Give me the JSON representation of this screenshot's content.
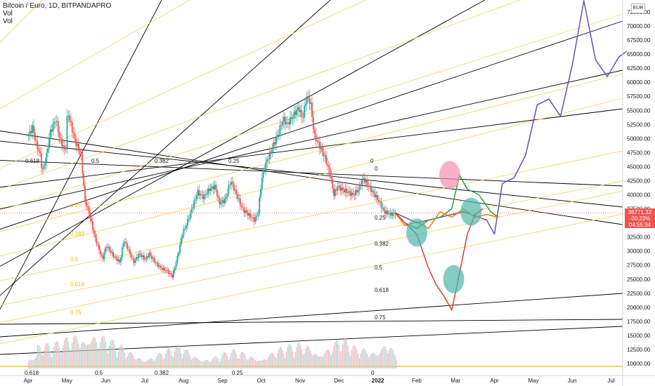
{
  "header": {
    "title": "Bitcoin / Euro, 1D, BITPANDAPRO",
    "vol1": "Vol",
    "vol2": "Vol"
  },
  "currency": "EUR",
  "price_badge": {
    "price": "36771.32",
    "change": "-20.23%",
    "countdown": "04:55:34"
  },
  "colors": {
    "up": "#26a69a",
    "down": "#ef5350",
    "fan_black": "#000000",
    "fan_yellow": "#f5d76e",
    "projection_purple": "#6a4fb3",
    "projection_green": "#2e9e44",
    "projection_orange": "#f57c00",
    "projection_red": "#e53935",
    "circle_teal": "#4db6ac",
    "circle_pink": "#f48fb1"
  },
  "chart_data": {
    "type": "candlestick",
    "symbol": "BTC/EUR",
    "interval": "1D",
    "ylim": [
      9000,
      77000
    ],
    "y_ticks": [
      "10000.00",
      "12500.00",
      "15000.00",
      "17500.00",
      "20000.00",
      "22500.00",
      "25000.00",
      "27500.00",
      "30000.00",
      "32500.00",
      "35000.00",
      "37500.00",
      "40000.00",
      "42500.00",
      "45000.00",
      "47500.00",
      "50000.00",
      "52500.00",
      "55000.00",
      "57500.00",
      "60000.00",
      "62500.00",
      "65000.00",
      "67500.00",
      "70000.00",
      "72500.00"
    ],
    "x_ticks": [
      "Apr",
      "May",
      "Jun",
      "Jul",
      "Aug",
      "Sep",
      "Oct",
      "Nov",
      "Dec",
      "2022",
      "Feb",
      "Mar",
      "Apr",
      "May",
      "Jun",
      "Jul"
    ],
    "x_tick_months": [
      0,
      1,
      2,
      3,
      4,
      5,
      6,
      7,
      8,
      9,
      10,
      11,
      12,
      13,
      14,
      15
    ],
    "price_series": [
      [
        0.0,
        50500
      ],
      [
        0.1,
        52000
      ],
      [
        0.2,
        49000
      ],
      [
        0.3,
        47000
      ],
      [
        0.35,
        44000
      ],
      [
        0.45,
        46500
      ],
      [
        0.55,
        51000
      ],
      [
        0.7,
        53500
      ],
      [
        0.8,
        50000
      ],
      [
        0.95,
        47500
      ],
      [
        1.0,
        55000
      ],
      [
        1.05,
        53500
      ],
      [
        1.2,
        49500
      ],
      [
        1.35,
        47000
      ],
      [
        1.45,
        39000
      ],
      [
        1.55,
        37000
      ],
      [
        1.7,
        32500
      ],
      [
        1.8,
        30500
      ],
      [
        1.9,
        28500
      ],
      [
        2.0,
        31000
      ],
      [
        2.1,
        30000
      ],
      [
        2.2,
        29000
      ],
      [
        2.35,
        28000
      ],
      [
        2.45,
        32000
      ],
      [
        2.55,
        30500
      ],
      [
        2.7,
        28000
      ],
      [
        2.85,
        29500
      ],
      [
        3.0,
        28500
      ],
      [
        3.1,
        29500
      ],
      [
        3.25,
        28000
      ],
      [
        3.4,
        27000
      ],
      [
        3.55,
        26500
      ],
      [
        3.7,
        25500
      ],
      [
        3.85,
        29500
      ],
      [
        3.95,
        33000
      ],
      [
        4.05,
        34500
      ],
      [
        4.2,
        37500
      ],
      [
        4.35,
        40500
      ],
      [
        4.5,
        39500
      ],
      [
        4.65,
        41000
      ],
      [
        4.8,
        41500
      ],
      [
        4.9,
        38500
      ],
      [
        5.05,
        39000
      ],
      [
        5.2,
        42500
      ],
      [
        5.35,
        40000
      ],
      [
        5.5,
        37500
      ],
      [
        5.65,
        36500
      ],
      [
        5.8,
        35500
      ],
      [
        5.9,
        36500
      ],
      [
        6.0,
        43000
      ],
      [
        6.1,
        45500
      ],
      [
        6.25,
        48000
      ],
      [
        6.4,
        50500
      ],
      [
        6.55,
        53500
      ],
      [
        6.65,
        52500
      ],
      [
        6.8,
        54000
      ],
      [
        6.95,
        55500
      ],
      [
        7.05,
        53500
      ],
      [
        7.15,
        57500
      ],
      [
        7.25,
        56500
      ],
      [
        7.35,
        50500
      ],
      [
        7.5,
        48500
      ],
      [
        7.6,
        47000
      ],
      [
        7.75,
        44000
      ],
      [
        7.85,
        40000
      ],
      [
        7.95,
        41500
      ],
      [
        8.05,
        41000
      ],
      [
        8.2,
        40500
      ],
      [
        8.35,
        40000
      ],
      [
        8.5,
        41000
      ],
      [
        8.6,
        43000
      ],
      [
        8.75,
        41500
      ],
      [
        8.85,
        40500
      ],
      [
        9.0,
        39000
      ],
      [
        9.15,
        37000
      ],
      [
        9.3,
        36500
      ],
      [
        9.45,
        36771
      ]
    ],
    "volume_series": [
      [
        0.2,
        25
      ],
      [
        0.6,
        18
      ],
      [
        0.9,
        22
      ],
      [
        1.3,
        35
      ],
      [
        1.55,
        42
      ],
      [
        1.8,
        30
      ],
      [
        2.2,
        20
      ],
      [
        2.6,
        15
      ],
      [
        3.0,
        12
      ],
      [
        3.5,
        14
      ],
      [
        3.9,
        18
      ],
      [
        4.3,
        13
      ],
      [
        4.8,
        11
      ],
      [
        5.3,
        14
      ],
      [
        5.8,
        12
      ],
      [
        6.3,
        16
      ],
      [
        6.8,
        18
      ],
      [
        7.2,
        22
      ],
      [
        7.6,
        20
      ],
      [
        8.0,
        24
      ],
      [
        8.4,
        17
      ],
      [
        8.8,
        19
      ],
      [
        9.2,
        28
      ],
      [
        9.4,
        14
      ]
    ],
    "projections": [
      {
        "color": "projection_purple",
        "points": [
          [
            9.45,
            36771
          ],
          [
            10.0,
            35000
          ],
          [
            10.6,
            36000
          ],
          [
            11.2,
            37000
          ],
          [
            11.8,
            35500
          ],
          [
            12.0,
            33000
          ],
          [
            12.2,
            42000
          ],
          [
            12.5,
            43000
          ],
          [
            12.8,
            47000
          ],
          [
            13.1,
            56000
          ],
          [
            13.4,
            57000
          ],
          [
            13.7,
            54000
          ],
          [
            14.0,
            63000
          ],
          [
            14.3,
            74500
          ],
          [
            14.6,
            64000
          ],
          [
            14.9,
            61000
          ],
          [
            15.2,
            64500
          ],
          [
            15.4,
            65500
          ]
        ]
      },
      {
        "color": "projection_green",
        "points": [
          [
            9.45,
            36771
          ],
          [
            9.7,
            35000
          ],
          [
            10.0,
            34000
          ],
          [
            10.3,
            35500
          ],
          [
            10.6,
            36000
          ],
          [
            10.9,
            37500
          ],
          [
            11.1,
            43500
          ],
          [
            11.3,
            41000
          ],
          [
            11.6,
            40000
          ],
          [
            11.9,
            37000
          ],
          [
            12.1,
            36000
          ]
        ]
      },
      {
        "color": "projection_orange",
        "points": [
          [
            9.45,
            36771
          ],
          [
            9.7,
            34500
          ],
          [
            10.0,
            35200
          ],
          [
            10.3,
            34000
          ],
          [
            10.6,
            37000
          ],
          [
            10.9,
            36000
          ],
          [
            11.2,
            37500
          ],
          [
            11.5,
            36000
          ],
          [
            11.8,
            36500
          ],
          [
            12.1,
            36000
          ]
        ]
      },
      {
        "color": "projection_red",
        "points": [
          [
            9.45,
            36771
          ],
          [
            9.7,
            35000
          ],
          [
            10.0,
            33000
          ],
          [
            10.3,
            27000
          ],
          [
            10.5,
            24000
          ],
          [
            10.7,
            22000
          ],
          [
            10.9,
            19500
          ],
          [
            11.1,
            26000
          ],
          [
            11.3,
            33000
          ],
          [
            11.5,
            36500
          ],
          [
            11.7,
            37500
          ]
        ]
      }
    ],
    "fib_fan_labels_top": [
      "0.618",
      "0.5",
      "0.382",
      "0.25",
      "0"
    ],
    "fib_fan_labels_right": [
      "0",
      "0.25",
      "0.382",
      "0.5",
      "0.618",
      "0.75"
    ],
    "fib_fan_labels_left": [
      "0.25",
      "0.382",
      "0.5",
      "0.618",
      "0.75"
    ],
    "fib_fan_labels_bottom": [
      "0.618",
      "0.5",
      "0.382",
      "0.25",
      "0"
    ]
  }
}
